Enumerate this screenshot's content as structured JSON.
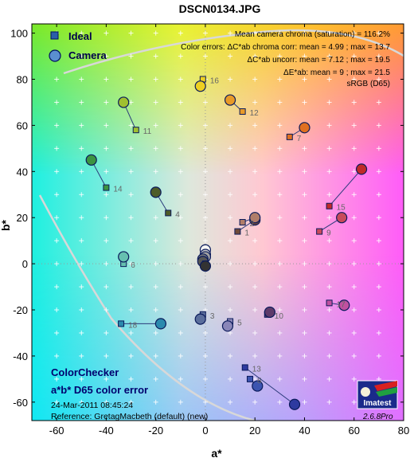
{
  "chart_data": {
    "type": "scatter",
    "title": "DSCN0134.JPG",
    "xlabel": "a*",
    "ylabel": "b*",
    "xlim": [
      -70,
      80
    ],
    "ylim": [
      -68,
      104
    ],
    "xticks": [
      -60,
      -40,
      -20,
      0,
      20,
      40,
      60,
      80
    ],
    "yticks": [
      -60,
      -40,
      -20,
      0,
      20,
      40,
      60,
      80,
      100
    ],
    "grid": "dotted crosses",
    "legend": [
      {
        "name": "Ideal",
        "marker": "square",
        "color": "#2a5fa8"
      },
      {
        "name": "Camera",
        "marker": "circle",
        "color": "#5a8fd0"
      }
    ],
    "stats": [
      "Mean camera chroma (saturation) = 116.2%",
      "Color errors:  ΔC*ab chroma corr:  mean = 4.99 ;  max = 13.7",
      "ΔC*ab uncorr:  mean = 7.12 ;  max = 19.5",
      "ΔE*ab:  mean = 9 ;  max = 21.5",
      "sRGB (D65)"
    ],
    "patches": [
      {
        "id": "1",
        "ideal": [
          13,
          14
        ],
        "camera": [
          20,
          19
        ],
        "color": "#6e4a3a"
      },
      {
        "id": "2",
        "ideal": [
          15,
          18
        ],
        "camera": [
          20,
          20
        ],
        "color": "#b07d69"
      },
      {
        "id": "3",
        "ideal": [
          -1,
          -22
        ],
        "camera": [
          -2,
          -24
        ],
        "color": "#5a6e9c"
      },
      {
        "id": "4",
        "ideal": [
          -15,
          22
        ],
        "camera": [
          -20,
          31
        ],
        "color": "#4e5c28"
      },
      {
        "id": "5",
        "ideal": [
          10,
          -25
        ],
        "camera": [
          9,
          -27
        ],
        "color": "#8a86b8"
      },
      {
        "id": "6",
        "ideal": [
          -33,
          0
        ],
        "camera": [
          -33,
          3
        ],
        "color": "#66c0b0"
      },
      {
        "id": "7",
        "ideal": [
          34,
          55
        ],
        "camera": [
          40,
          59
        ],
        "color": "#e07020"
      },
      {
        "id": "8",
        "ideal": [
          18,
          -50
        ],
        "camera": [
          21,
          -53
        ],
        "color": "#3c54b0"
      },
      {
        "id": "9",
        "ideal": [
          46,
          14
        ],
        "camera": [
          55,
          20
        ],
        "color": "#c84a5a"
      },
      {
        "id": "10",
        "ideal": [
          25,
          -22
        ],
        "camera": [
          26,
          -21
        ],
        "color": "#5e3a6a"
      },
      {
        "id": "11",
        "ideal": [
          -28,
          58
        ],
        "camera": [
          -33,
          70
        ],
        "color": "#a0c030"
      },
      {
        "id": "12",
        "ideal": [
          15,
          66
        ],
        "camera": [
          10,
          71
        ],
        "color": "#e89a28"
      },
      {
        "id": "13",
        "ideal": [
          16,
          -45
        ],
        "camera": [
          36,
          -61
        ],
        "color": "#2e3aa0"
      },
      {
        "id": "14",
        "ideal": [
          -40,
          33
        ],
        "camera": [
          -46,
          45
        ],
        "color": "#3c9440"
      },
      {
        "id": "15",
        "ideal": [
          50,
          25
        ],
        "camera": [
          63,
          41
        ],
        "color": "#c02a28"
      },
      {
        "id": "16",
        "ideal": [
          -1,
          80
        ],
        "camera": [
          -2,
          77
        ],
        "color": "#eed020"
      },
      {
        "id": "17",
        "ideal": [
          50,
          -17
        ],
        "camera": [
          56,
          -18
        ],
        "color": "#c050a0"
      },
      {
        "id": "18",
        "ideal": [
          -34,
          -26
        ],
        "camera": [
          -18,
          -26
        ],
        "color": "#2a8aae"
      },
      {
        "id": "",
        "ideal": [
          0,
          0
        ],
        "camera": [
          0,
          6
        ],
        "color": "#f4f4f4"
      },
      {
        "id": "",
        "ideal": [
          0,
          0
        ],
        "camera": [
          0,
          4
        ],
        "color": "#c8c8c8"
      },
      {
        "id": "",
        "ideal": [
          0,
          0
        ],
        "camera": [
          0,
          3
        ],
        "color": "#a0a0a0"
      },
      {
        "id": "",
        "ideal": [
          0,
          0
        ],
        "camera": [
          -1,
          2
        ],
        "color": "#7a7a7a"
      },
      {
        "id": "",
        "ideal": [
          0,
          0
        ],
        "camera": [
          -1,
          1
        ],
        "color": "#555555"
      },
      {
        "id": "",
        "ideal": [
          0,
          0
        ],
        "camera": [
          0,
          -1
        ],
        "color": "#333333"
      }
    ]
  },
  "legend": {
    "ideal_label": "Ideal",
    "camera_label": "Camera"
  },
  "footer": {
    "line1": "ColorChecker",
    "line2": "a*b* D65 color error",
    "line3": "24-Mar-2011 08:45:24",
    "line4": "Reference: GretagMacbeth (default) (new)"
  },
  "badge": {
    "name": "Imatest",
    "version": "2.6.8",
    "edition": "Pro"
  },
  "colors": {
    "ideal": "#2a5fa8",
    "camera": "#5a8fd0",
    "gamut": "#d8d8d8"
  }
}
